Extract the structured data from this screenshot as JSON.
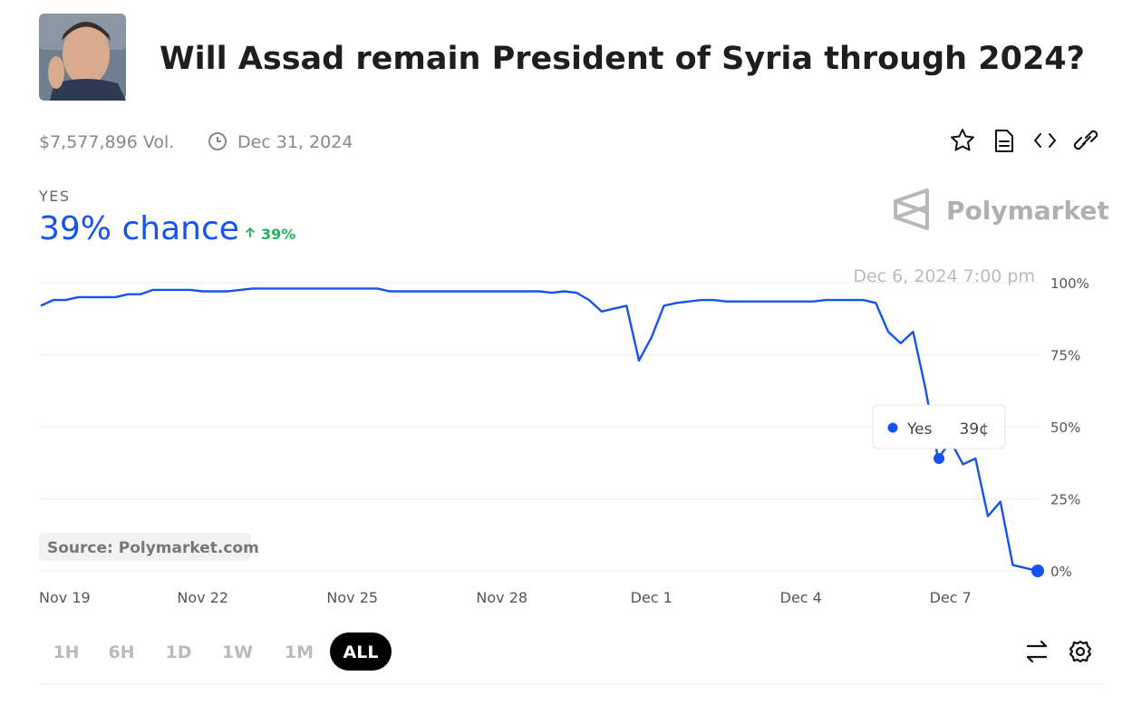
{
  "header": {
    "title": "Will Assad remain President of Syria through 2024?",
    "volume": "$7,577,896 Vol.",
    "end_date": "Dec 31, 2024"
  },
  "outcome": {
    "label": "YES",
    "chance": "39% chance",
    "change": "39%"
  },
  "brand": "Polymarket",
  "source": "Source: Polymarket.com",
  "range_buttons": [
    "1H",
    "6H",
    "1D",
    "1W",
    "1M",
    "ALL"
  ],
  "chart_data": {
    "type": "line",
    "categories": [
      null,
      "Nov 19",
      null,
      null,
      null,
      null,
      null,
      null,
      null,
      null,
      null,
      null,
      null,
      "Nov 22",
      null,
      null,
      null,
      null,
      null,
      null,
      null,
      null,
      null,
      null,
      null,
      "Nov 25",
      null,
      null,
      null,
      null,
      null,
      null,
      null,
      null,
      null,
      null,
      null,
      "Nov 28",
      null,
      null,
      null,
      null,
      null,
      null,
      null,
      null,
      null,
      null,
      null,
      "Dec 1",
      null,
      null,
      null,
      null,
      null,
      null,
      null,
      null,
      null,
      null,
      null,
      "Dec 4",
      null,
      null,
      null,
      null,
      null,
      null,
      null,
      null,
      null,
      null,
      null,
      "Dec 7",
      null,
      null,
      null,
      null,
      null,
      null,
      null
    ],
    "series": [
      {
        "name": "Yes",
        "color": "#1652f0",
        "values": [
          92,
          94,
          94,
          95,
          95,
          95,
          95,
          96,
          96,
          97.5,
          97.5,
          97.5,
          97.5,
          97,
          97,
          97,
          97.5,
          98,
          98,
          98,
          98,
          98,
          98,
          98,
          98,
          98,
          98,
          98,
          97,
          97,
          97,
          97,
          97,
          97,
          97,
          97,
          97,
          97,
          97,
          97,
          97,
          96.5,
          97,
          96.5,
          94,
          90,
          91,
          92,
          73,
          81,
          92,
          93,
          93.5,
          94,
          94,
          93.5,
          93.5,
          93.5,
          93.5,
          93.5,
          93.5,
          93.5,
          93.5,
          94,
          94,
          94,
          94,
          93,
          83,
          79,
          83,
          63,
          39,
          45,
          37,
          39,
          19,
          24,
          2,
          1,
          0
        ]
      }
    ],
    "ylim": [
      0,
      100
    ],
    "yticks": [
      {
        "value": 0,
        "label": "0%"
      },
      {
        "value": 25,
        "label": "25%"
      },
      {
        "value": 50,
        "label": "50%"
      },
      {
        "value": 75,
        "label": "75%"
      },
      {
        "value": 100,
        "label": "100%"
      }
    ],
    "grid": true,
    "hover": {
      "date": "Dec 6, 2024 7:00 pm",
      "value": 39,
      "value_label": "39¢"
    }
  }
}
